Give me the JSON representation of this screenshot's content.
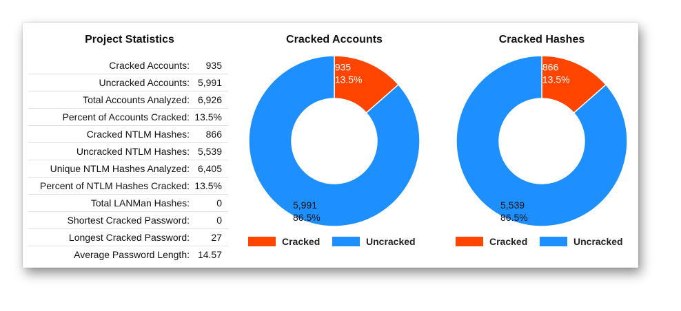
{
  "stats": {
    "title": "Project Statistics",
    "rows": [
      {
        "label": "Cracked Accounts:",
        "value": "935"
      },
      {
        "label": "Uncracked Accounts:",
        "value": "5,991"
      },
      {
        "label": "Total Accounts Analyzed:",
        "value": "6,926"
      },
      {
        "label": "Percent of Accounts Cracked:",
        "value": "13.5%"
      },
      {
        "label": "Cracked NTLM Hashes:",
        "value": "866"
      },
      {
        "label": "Uncracked NTLM Hashes:",
        "value": "5,539"
      },
      {
        "label": "Unique NTLM Hashes Analyzed:",
        "value": "6,405"
      },
      {
        "label": "Percent of NTLM Hashes Cracked:",
        "value": "13.5%"
      },
      {
        "label": "Total LANMan Hashes:",
        "value": "0"
      },
      {
        "label": "Shortest Cracked Password:",
        "value": "0"
      },
      {
        "label": "Longest Cracked Password:",
        "value": "27"
      },
      {
        "label": "Average Password Length:",
        "value": "14.57"
      }
    ]
  },
  "colors": {
    "cracked": "#FF4500",
    "uncracked": "#1E8FFF"
  },
  "chart_data": [
    {
      "type": "pie",
      "title": "Cracked Accounts",
      "categories": [
        "Cracked",
        "Uncracked"
      ],
      "values": [
        935,
        5991
      ],
      "value_labels": [
        "935",
        "5,991"
      ],
      "percent_labels": [
        "13.5%",
        "86.5%"
      ],
      "donut": true,
      "legend_position": "bottom"
    },
    {
      "type": "pie",
      "title": "Cracked Hashes",
      "categories": [
        "Cracked",
        "Uncracked"
      ],
      "values": [
        866,
        5539
      ],
      "value_labels": [
        "866",
        "5,539"
      ],
      "percent_labels": [
        "13.5%",
        "86.5%"
      ],
      "donut": true,
      "legend_position": "bottom"
    }
  ]
}
